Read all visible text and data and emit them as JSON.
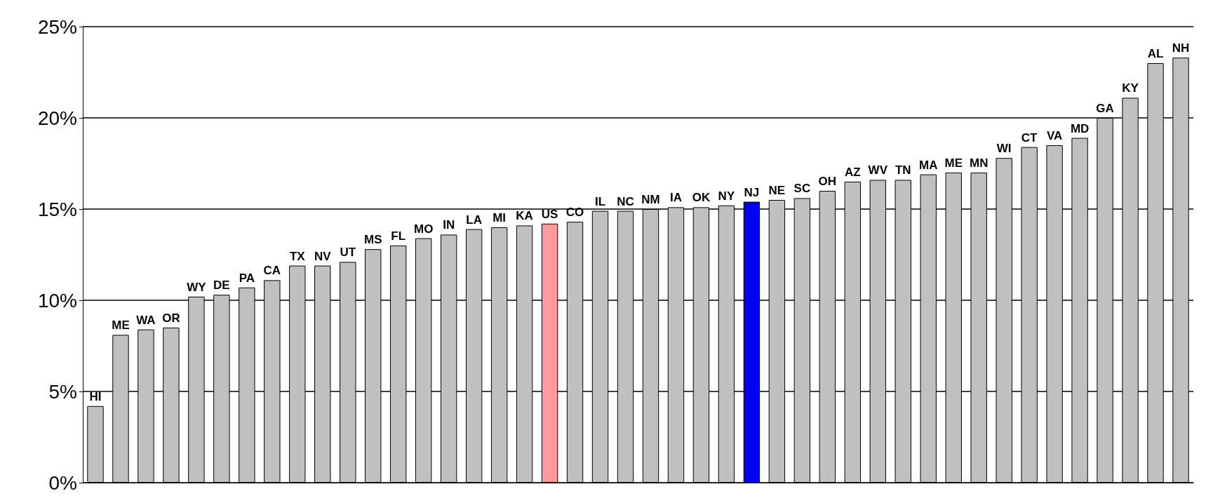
{
  "chart_data": {
    "type": "bar",
    "categories": [
      "HI",
      "ME",
      "WA",
      "OR",
      "WY",
      "DE",
      "PA",
      "CA",
      "TX",
      "NV",
      "UT",
      "MS",
      "FL",
      "MO",
      "IN",
      "LA",
      "MI",
      "KA",
      "US",
      "CO",
      "IL",
      "NC",
      "NM",
      "IA",
      "OK",
      "NY",
      "NJ",
      "NE",
      "SC",
      "OH",
      "AZ",
      "WV",
      "TN",
      "MA",
      "ME",
      "MN",
      "WI",
      "CT",
      "VA",
      "MD",
      "GA",
      "KY",
      "AL",
      "NH"
    ],
    "values": [
      4.2,
      8.1,
      8.4,
      8.5,
      10.2,
      10.3,
      10.7,
      11.1,
      11.9,
      11.9,
      12.1,
      12.8,
      13.0,
      13.4,
      13.6,
      13.9,
      14.0,
      14.1,
      14.2,
      14.3,
      14.9,
      14.9,
      15.0,
      15.1,
      15.1,
      15.2,
      15.4,
      15.5,
      15.6,
      16.0,
      16.5,
      16.6,
      16.6,
      16.9,
      17.0,
      17.0,
      17.8,
      18.4,
      18.5,
      18.9,
      20.0,
      21.1,
      23.0,
      23.3
    ],
    "colors": [
      "#c0c0c0",
      "#c0c0c0",
      "#c0c0c0",
      "#c0c0c0",
      "#c0c0c0",
      "#c0c0c0",
      "#c0c0c0",
      "#c0c0c0",
      "#c0c0c0",
      "#c0c0c0",
      "#c0c0c0",
      "#c0c0c0",
      "#c0c0c0",
      "#c0c0c0",
      "#c0c0c0",
      "#c0c0c0",
      "#c0c0c0",
      "#c0c0c0",
      "#ff9999",
      "#c0c0c0",
      "#c0c0c0",
      "#c0c0c0",
      "#c0c0c0",
      "#c0c0c0",
      "#c0c0c0",
      "#c0c0c0",
      "#0000ff",
      "#c0c0c0",
      "#c0c0c0",
      "#c0c0c0",
      "#c0c0c0",
      "#c0c0c0",
      "#c0c0c0",
      "#c0c0c0",
      "#c0c0c0",
      "#c0c0c0",
      "#c0c0c0",
      "#c0c0c0",
      "#c0c0c0",
      "#c0c0c0",
      "#c0c0c0",
      "#c0c0c0",
      "#c0c0c0",
      "#c0c0c0"
    ],
    "ylim": [
      0,
      25
    ],
    "yticks": [
      {
        "value": 0,
        "label": "0%"
      },
      {
        "value": 5,
        "label": "5%"
      },
      {
        "value": 10,
        "label": "10%"
      },
      {
        "value": 15,
        "label": "15%"
      },
      {
        "value": 20,
        "label": "20%"
      },
      {
        "value": 25,
        "label": "25%"
      }
    ],
    "grid": "y",
    "tick_labels": "y"
  }
}
